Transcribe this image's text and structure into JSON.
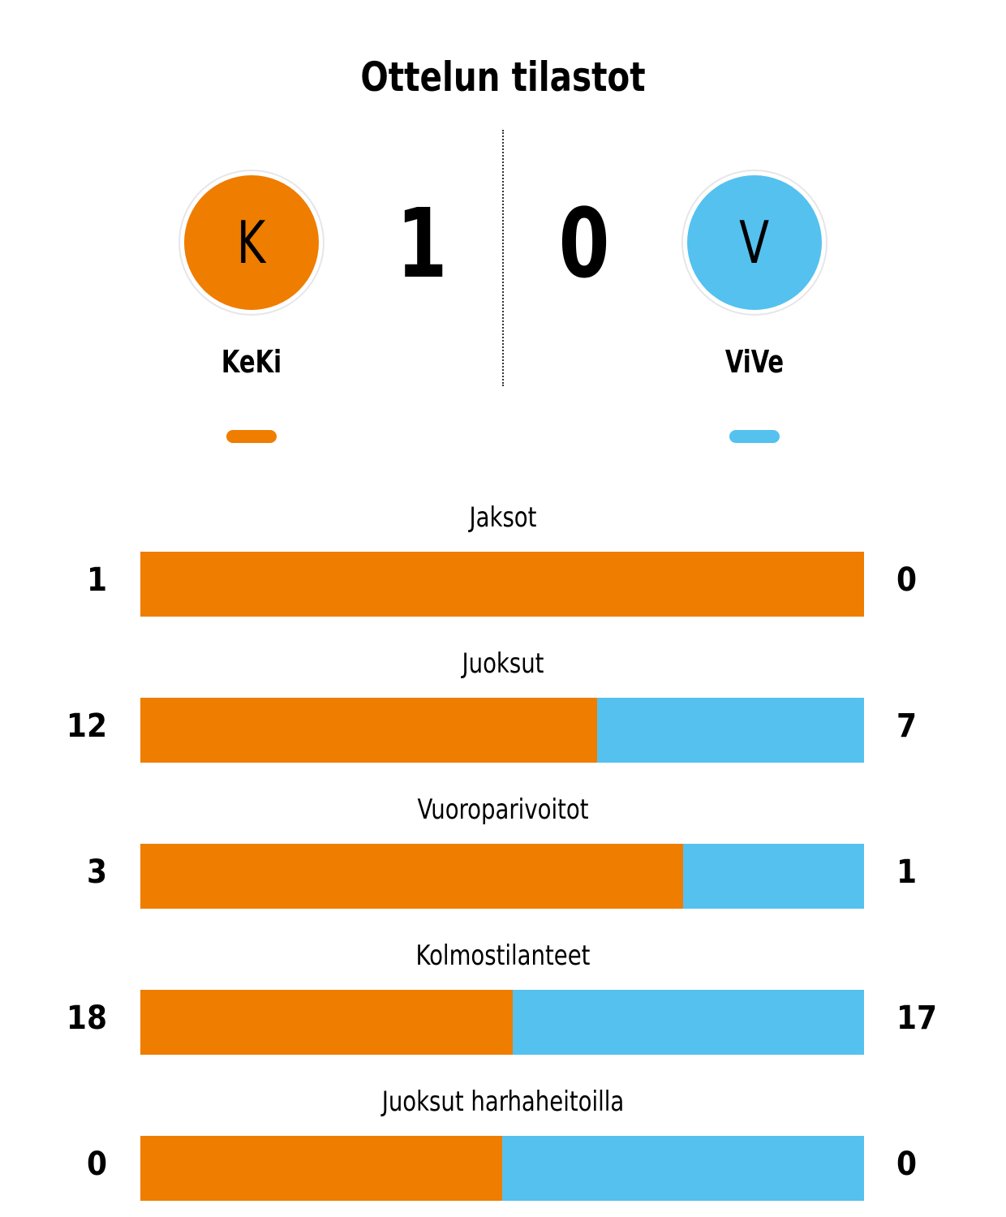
{
  "title": "Ottelun tilastot",
  "colors": {
    "home": "#EF7D00",
    "away": "#55C1EF"
  },
  "home": {
    "name": "KeKi",
    "initial": "K",
    "score": "1"
  },
  "away": {
    "name": "ViVe",
    "initial": "V",
    "score": "0"
  },
  "stats": [
    {
      "label": "Jaksot",
      "home": 1,
      "away": 0
    },
    {
      "label": "Juoksut",
      "home": 12,
      "away": 7
    },
    {
      "label": "Vuoroparivoitot",
      "home": 3,
      "away": 1
    },
    {
      "label": "Kolmostilanteet",
      "home": 18,
      "away": 17
    },
    {
      "label": "Juoksut harhaheitoilla",
      "home": 0,
      "away": 0
    }
  ]
}
